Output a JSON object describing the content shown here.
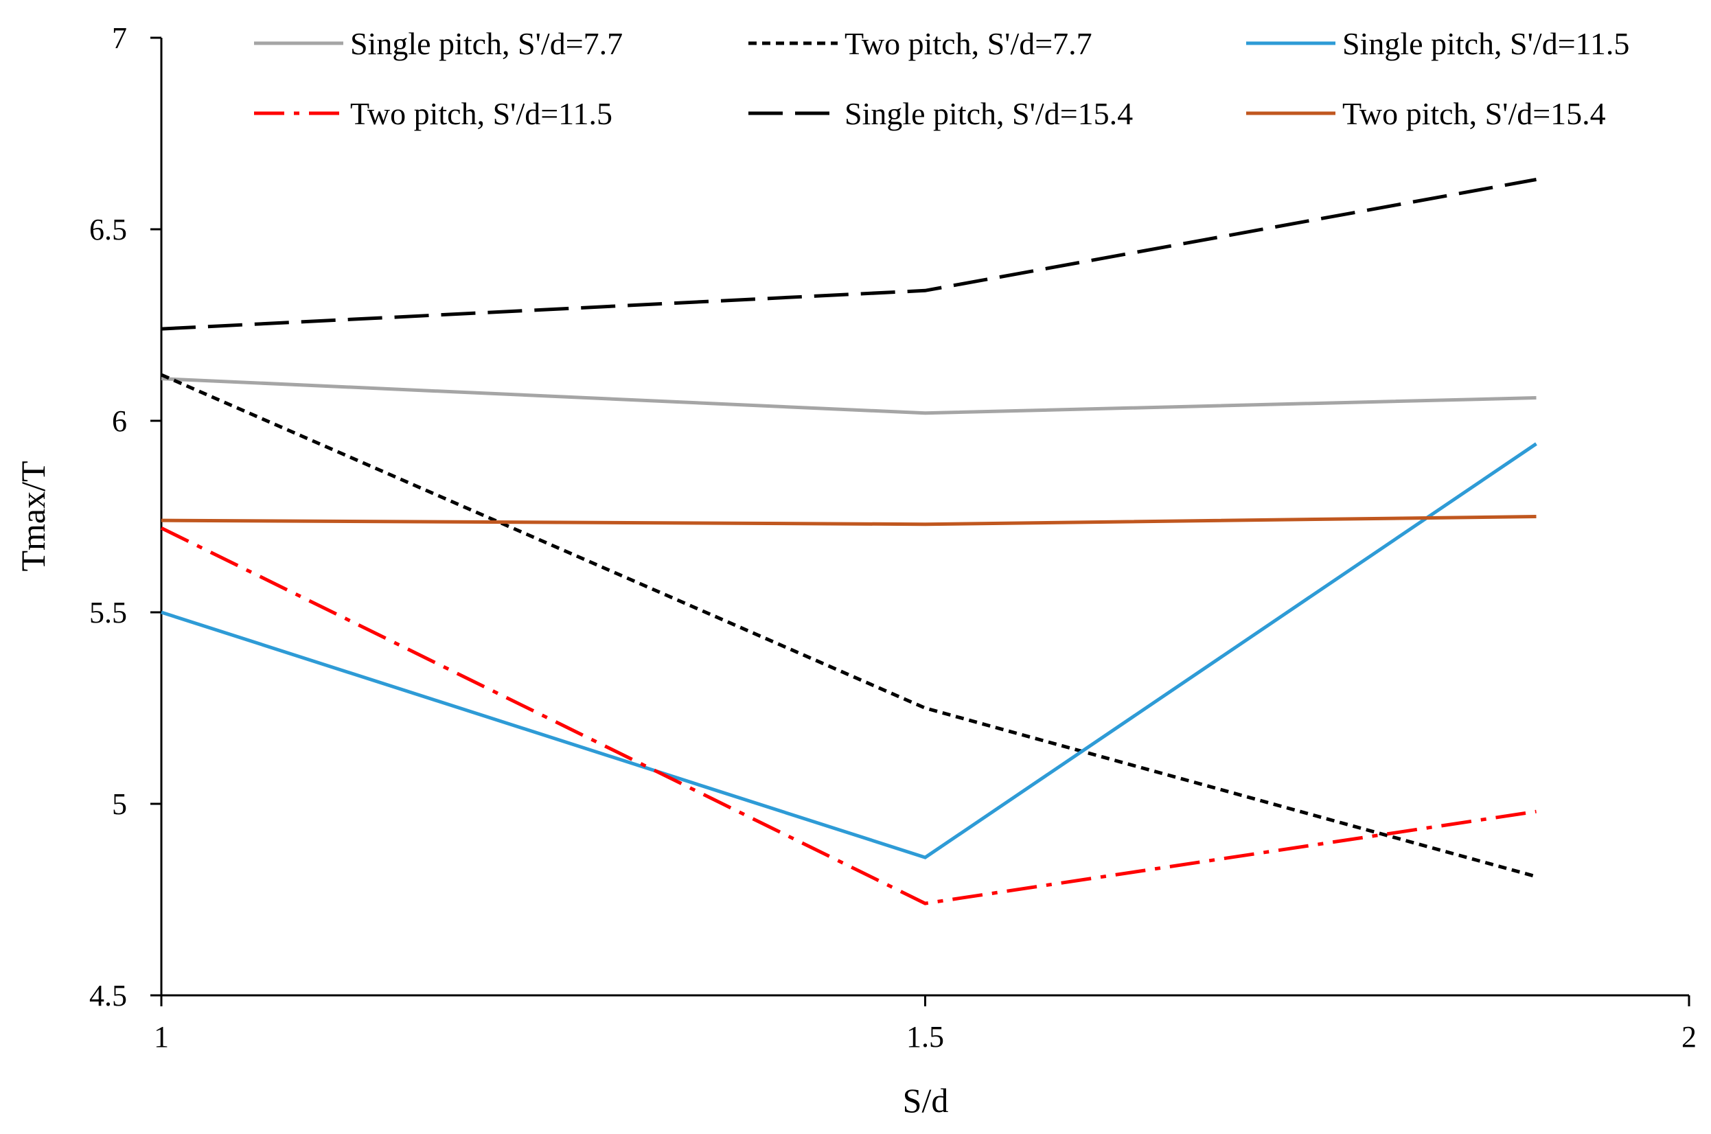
{
  "chart_data": {
    "type": "line",
    "title": "",
    "xlabel": "S/d",
    "ylabel": "Tmax/T",
    "xlim": [
      1,
      2
    ],
    "ylim": [
      4.5,
      7
    ],
    "x_ticks": [
      "1",
      "1.5",
      "2"
    ],
    "x_tick_values": [
      1,
      1.5,
      2
    ],
    "y_ticks": [
      "4.5",
      "5",
      "5.5",
      "6",
      "6.5",
      "7"
    ],
    "y_tick_values": [
      4.5,
      5,
      5.5,
      6,
      6.5,
      7
    ],
    "grid": false,
    "legend_position": "top",
    "x": [
      1,
      1.5,
      1.9
    ],
    "series": [
      {
        "name": "Single pitch, S'/d=7.7",
        "values": [
          6.11,
          6.02,
          6.06
        ],
        "color": "#A5A5A5",
        "dash": "solid"
      },
      {
        "name": "Two pitch, S'/d=7.7",
        "values": [
          6.12,
          5.25,
          4.81
        ],
        "color": "#000000",
        "dash": "dotted"
      },
      {
        "name": "Single pitch, S'/d=11.5",
        "values": [
          5.5,
          4.86,
          5.94
        ],
        "color": "#2E9BD6",
        "dash": "solid"
      },
      {
        "name": "Two pitch, S'/d=11.5",
        "values": [
          5.72,
          4.74,
          4.98
        ],
        "color": "#FF0000",
        "dash": "dashdot"
      },
      {
        "name": "Single pitch, S'/d=15.4",
        "values": [
          6.24,
          6.34,
          6.63
        ],
        "color": "#000000",
        "dash": "longdash"
      },
      {
        "name": "Two pitch, S'/d=15.4",
        "values": [
          5.74,
          5.73,
          5.75
        ],
        "color": "#C0571F",
        "dash": "solid"
      }
    ]
  }
}
